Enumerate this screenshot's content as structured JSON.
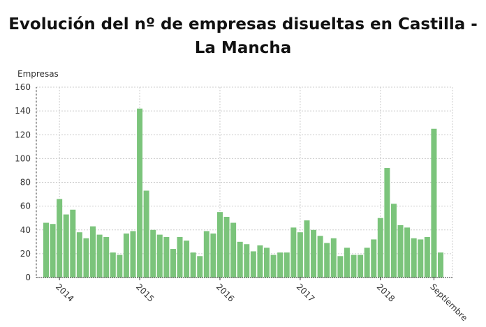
{
  "chart_data": {
    "type": "bar",
    "title": "Evolución del nº de empresas disueltas en Castilla - La Mancha",
    "ylabel": "Empresas",
    "xlabel": "",
    "ylim": [
      0,
      160
    ],
    "yticks": [
      0,
      20,
      40,
      60,
      80,
      100,
      120,
      140,
      160
    ],
    "grid": true,
    "color": "#7bc47b",
    "xtick_labels": [
      {
        "label": "2014",
        "index": 2
      },
      {
        "label": "2015",
        "index": 14
      },
      {
        "label": "2016",
        "index": 26
      },
      {
        "label": "2017",
        "index": 38
      },
      {
        "label": "2018",
        "index": 50
      },
      {
        "label": "Septiembre",
        "index": 58
      }
    ],
    "values": [
      46,
      45,
      66,
      53,
      57,
      38,
      33,
      43,
      36,
      34,
      21,
      19,
      37,
      39,
      142,
      73,
      40,
      36,
      34,
      24,
      34,
      31,
      21,
      18,
      39,
      37,
      55,
      51,
      46,
      30,
      28,
      22,
      27,
      25,
      19,
      21,
      21,
      42,
      38,
      48,
      40,
      35,
      29,
      33,
      18,
      25,
      19,
      19,
      25,
      32,
      50,
      92,
      62,
      44,
      42,
      33,
      32,
      34,
      125,
      21
    ]
  }
}
